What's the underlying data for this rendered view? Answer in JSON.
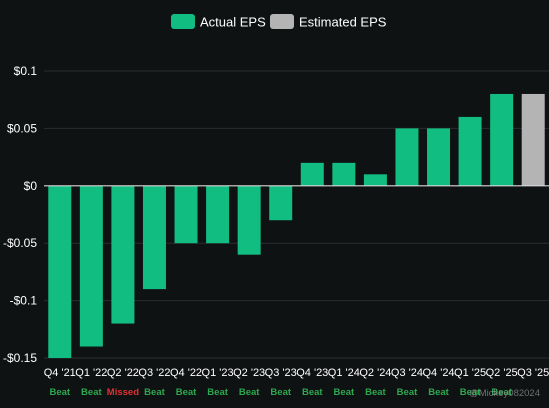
{
  "chart_data": {
    "type": "bar",
    "legend": {
      "position": "top-center",
      "entries": [
        {
          "label": "Actual EPS",
          "color": "#12bd82"
        },
        {
          "label": "Estimated EPS",
          "color": "#b4b4b4"
        }
      ]
    },
    "categories": [
      "Q4 '21",
      "Q1 '22",
      "Q2 '22",
      "Q3 '22",
      "Q4 '22",
      "Q1 '23",
      "Q2 '23",
      "Q3 '23",
      "Q4 '23",
      "Q1 '24",
      "Q2 '24",
      "Q3 '24",
      "Q4 '24",
      "Q1 '25",
      "Q2 '25",
      "Q3 '25"
    ],
    "series": [
      {
        "name": "Actual EPS",
        "color": "#12bd82",
        "values": [
          -0.15,
          -0.14,
          -0.12,
          -0.09,
          -0.05,
          -0.05,
          -0.06,
          -0.03,
          0.02,
          0.02,
          0.01,
          0.05,
          0.05,
          0.06,
          0.08,
          null
        ]
      },
      {
        "name": "Estimated EPS",
        "color": "#b4b4b4",
        "values": [
          null,
          null,
          null,
          null,
          null,
          null,
          null,
          null,
          null,
          null,
          null,
          null,
          null,
          null,
          null,
          0.08
        ]
      }
    ],
    "results": [
      "Beat",
      "Beat",
      "Missed",
      "Beat",
      "Beat",
      "Beat",
      "Beat",
      "Beat",
      "Beat",
      "Beat",
      "Beat",
      "Beat",
      "Beat",
      "Beat",
      "Beat",
      ""
    ],
    "result_colors": {
      "Beat": "#2ea84f",
      "Missed": "#e03131"
    },
    "y_ticks": [
      0.1,
      0.05,
      0,
      -0.05,
      -0.1,
      -0.15
    ],
    "y_tick_labels": [
      "$0.1",
      "$0.05",
      "$0",
      "-$0.05",
      "-$0.1",
      "-$0.15"
    ],
    "ylim": [
      -0.15,
      0.1
    ],
    "grid": true,
    "watermark": "@Mickey082024",
    "colors": {
      "background": "#0f1213",
      "grid": "#2a2d2f",
      "zero_line": "#d8d8d8",
      "text": "#ffffff"
    }
  }
}
